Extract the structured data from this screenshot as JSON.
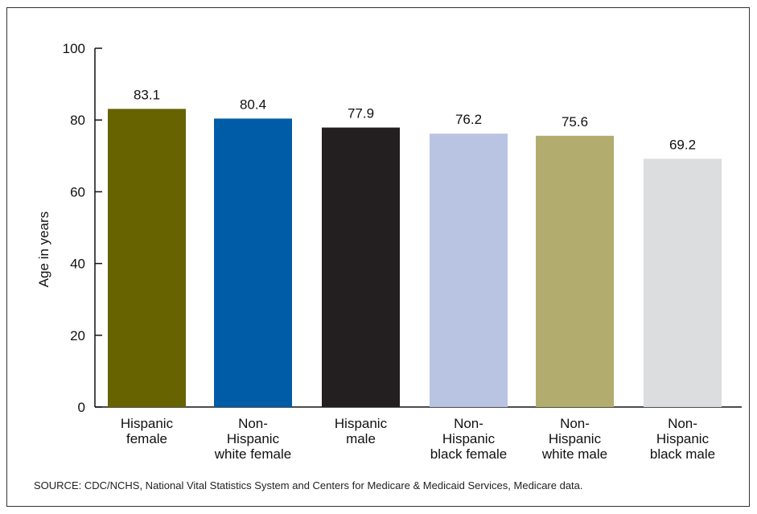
{
  "chart_data": {
    "type": "bar",
    "title": "",
    "xlabel": "",
    "ylabel": "Age in years",
    "ylim": [
      0,
      100
    ],
    "yticks": [
      0,
      20,
      40,
      60,
      80,
      100
    ],
    "categories": [
      [
        "Hispanic",
        "female"
      ],
      [
        "Non-",
        "Hispanic",
        "white female"
      ],
      [
        "Hispanic",
        "male"
      ],
      [
        "Non-",
        "Hispanic",
        "black female"
      ],
      [
        "Non-",
        "Hispanic",
        "white male"
      ],
      [
        "Non-",
        "Hispanic",
        "black male"
      ]
    ],
    "values": [
      83.1,
      80.4,
      77.9,
      76.2,
      75.6,
      69.2
    ],
    "value_labels": [
      "83.1",
      "80.4",
      "77.9",
      "76.2",
      "75.6",
      "69.2"
    ],
    "colors": [
      "#666300",
      "#005ca6",
      "#231f20",
      "#b9c4e2",
      "#b2ad6e",
      "#dcdddf"
    ],
    "grid": false,
    "legend": "none"
  },
  "footer": {
    "source": "SOURCE: CDC/NCHS, National Vital Statistics System and Centers for Medicare & Medicaid Services, Medicare data."
  }
}
